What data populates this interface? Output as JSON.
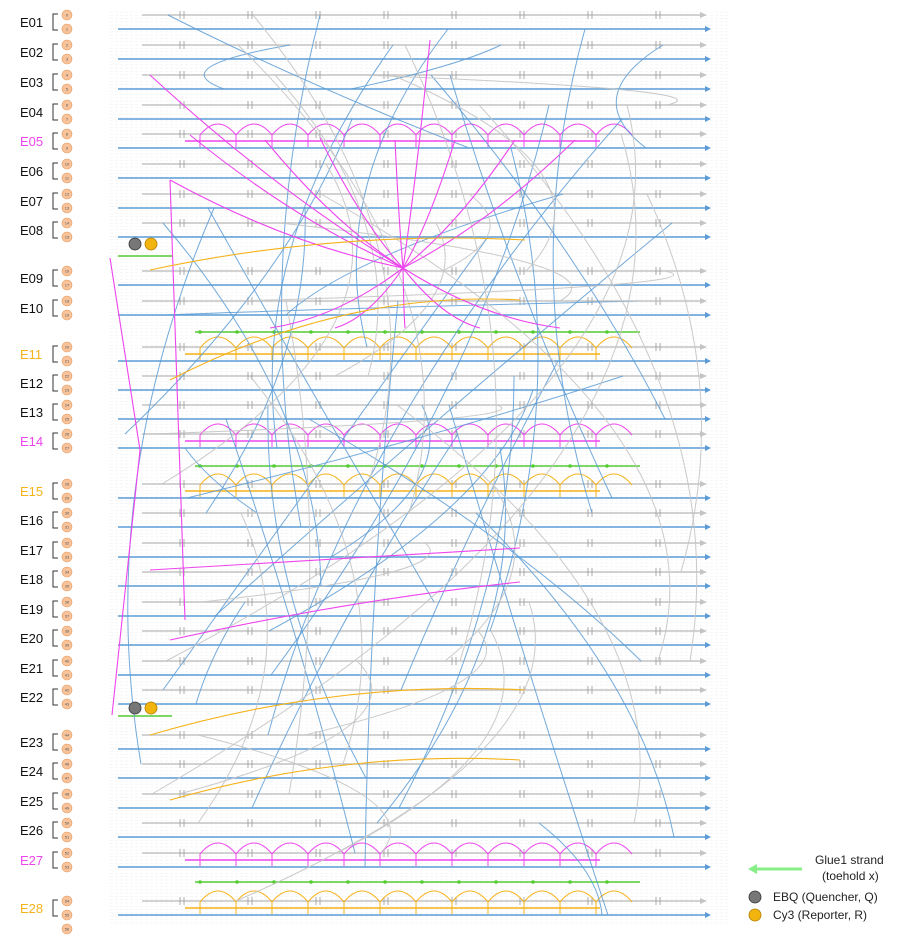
{
  "colors": {
    "black": "#111111",
    "magenta": "#ee44ee",
    "orange": "#f5b21a",
    "blue": "#5b9bd5",
    "gray": "#c4c4c4",
    "green": "#55cc33",
    "helix_fill": "#f8c39a",
    "helix_stroke": "#e59a60",
    "quencher": "#777777",
    "reporter": "#f2b40f"
  },
  "rows": [
    {
      "label": "E01",
      "color": "black",
      "nums": [
        "0",
        "1"
      ]
    },
    {
      "label": "E02",
      "color": "black",
      "nums": [
        "2",
        "3"
      ]
    },
    {
      "label": "E03",
      "color": "black",
      "nums": [
        "4",
        "5"
      ]
    },
    {
      "label": "E04",
      "color": "black",
      "nums": [
        "6",
        "7"
      ]
    },
    {
      "label": "E05",
      "color": "magenta",
      "nums": [
        "8",
        "9"
      ]
    },
    {
      "label": "E06",
      "color": "black",
      "nums": [
        "10",
        "11"
      ]
    },
    {
      "label": "E07",
      "color": "black",
      "nums": [
        "12",
        "13"
      ]
    },
    {
      "label": "E08",
      "color": "black",
      "nums": [
        "14",
        "15"
      ]
    },
    {
      "label": "E09",
      "color": "black",
      "nums": [
        "16",
        "17"
      ]
    },
    {
      "label": "E10",
      "color": "black",
      "nums": [
        "18",
        "19"
      ]
    },
    {
      "label": "E11",
      "color": "orange",
      "nums": [
        "20",
        "21"
      ]
    },
    {
      "label": "E12",
      "color": "black",
      "nums": [
        "22",
        "23"
      ]
    },
    {
      "label": "E13",
      "color": "black",
      "nums": [
        "24",
        "25"
      ]
    },
    {
      "label": "E14",
      "color": "magenta",
      "nums": [
        "26",
        "27"
      ]
    },
    {
      "label": "E15",
      "color": "orange",
      "nums": [
        "28",
        "29"
      ]
    },
    {
      "label": "E16",
      "color": "black",
      "nums": [
        "30",
        "31"
      ]
    },
    {
      "label": "E17",
      "color": "black",
      "nums": [
        "32",
        "33"
      ]
    },
    {
      "label": "E18",
      "color": "black",
      "nums": [
        "34",
        "35"
      ]
    },
    {
      "label": "E19",
      "color": "black",
      "nums": [
        "36",
        "37"
      ]
    },
    {
      "label": "E20",
      "color": "black",
      "nums": [
        "38",
        "39"
      ]
    },
    {
      "label": "E21",
      "color": "black",
      "nums": [
        "40",
        "41"
      ]
    },
    {
      "label": "E22",
      "color": "black",
      "nums": [
        "42",
        "43"
      ]
    },
    {
      "label": "E23",
      "color": "black",
      "nums": [
        "44",
        "45"
      ]
    },
    {
      "label": "E24",
      "color": "black",
      "nums": [
        "46",
        "47"
      ]
    },
    {
      "label": "E25",
      "color": "black",
      "nums": [
        "48",
        "49"
      ]
    },
    {
      "label": "E26",
      "color": "black",
      "nums": [
        "50",
        "51"
      ]
    },
    {
      "label": "E27",
      "color": "magenta",
      "nums": [
        "52",
        "53"
      ]
    },
    {
      "label": "E28",
      "color": "orange",
      "nums": [
        "54",
        "55",
        "56"
      ]
    }
  ],
  "legend": {
    "glue_line1": "Glue1 strand",
    "glue_line2": "(toehold x)",
    "quencher": "EBQ (Quencher, Q)",
    "reporter": "Cy3 (Reporter, R)"
  }
}
